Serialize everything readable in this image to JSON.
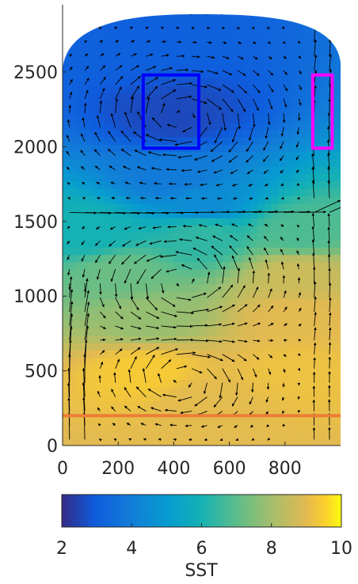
{
  "chart_data": [
    {
      "type": "heatmap",
      "title": "",
      "xlabel": "",
      "ylabel": "",
      "xlim": [
        0,
        1000
      ],
      "ylim": [
        0,
        2950
      ],
      "x_ticks": [
        "0",
        "200",
        "400",
        "600",
        "800"
      ],
      "x_tick_values": [
        0,
        200,
        400,
        600,
        800
      ],
      "y_ticks": [
        "0",
        "500",
        "1000",
        "1500",
        "2000",
        "2500"
      ],
      "y_tick_values": [
        0,
        500,
        1000,
        1500,
        2000,
        2500
      ],
      "grid": false,
      "field": "SST",
      "colormap": "parula",
      "color_range": [
        2,
        10
      ],
      "field_samples": [
        {
          "x": 300,
          "y": 2700,
          "SST": 3.1
        },
        {
          "x": 400,
          "y": 2200,
          "SST": 2.6
        },
        {
          "x": 400,
          "y": 1800,
          "SST": 3.9
        },
        {
          "x": 500,
          "y": 1620,
          "SST": 4.5
        },
        {
          "x": 100,
          "y": 1420,
          "SST": 6.0
        },
        {
          "x": 500,
          "y": 1420,
          "SST": 6.4
        },
        {
          "x": 850,
          "y": 1420,
          "SST": 6.8
        },
        {
          "x": 200,
          "y": 1150,
          "SST": 7.2
        },
        {
          "x": 850,
          "y": 1150,
          "SST": 8.6
        },
        {
          "x": 300,
          "y": 850,
          "SST": 7.8
        },
        {
          "x": 850,
          "y": 850,
          "SST": 9.0
        },
        {
          "x": 300,
          "y": 500,
          "SST": 9.4
        },
        {
          "x": 500,
          "y": 300,
          "SST": 9.0
        },
        {
          "x": 850,
          "y": 500,
          "SST": 9.2
        }
      ],
      "regions": [
        {
          "name": "",
          "color": "#0000ff",
          "x": [
            290,
            490
          ],
          "y": [
            1990,
            2480
          ]
        },
        {
          "name": "",
          "color": "#ff00ff",
          "x": [
            900,
            970
          ],
          "y": [
            1990,
            2480
          ]
        }
      ],
      "lines": [
        {
          "name": "",
          "color": "#ec7d36",
          "x": [
            0,
            1000
          ],
          "y": [
            200,
            200
          ]
        }
      ],
      "vectors": "velocity arrows overlaid on the SST field"
    },
    {
      "type": "colorbar",
      "label": "SST",
      "range": [
        2,
        10
      ],
      "ticks": [
        "2",
        "4",
        "6",
        "8",
        "10"
      ],
      "tick_values": [
        2,
        4,
        6,
        8,
        10
      ]
    }
  ]
}
